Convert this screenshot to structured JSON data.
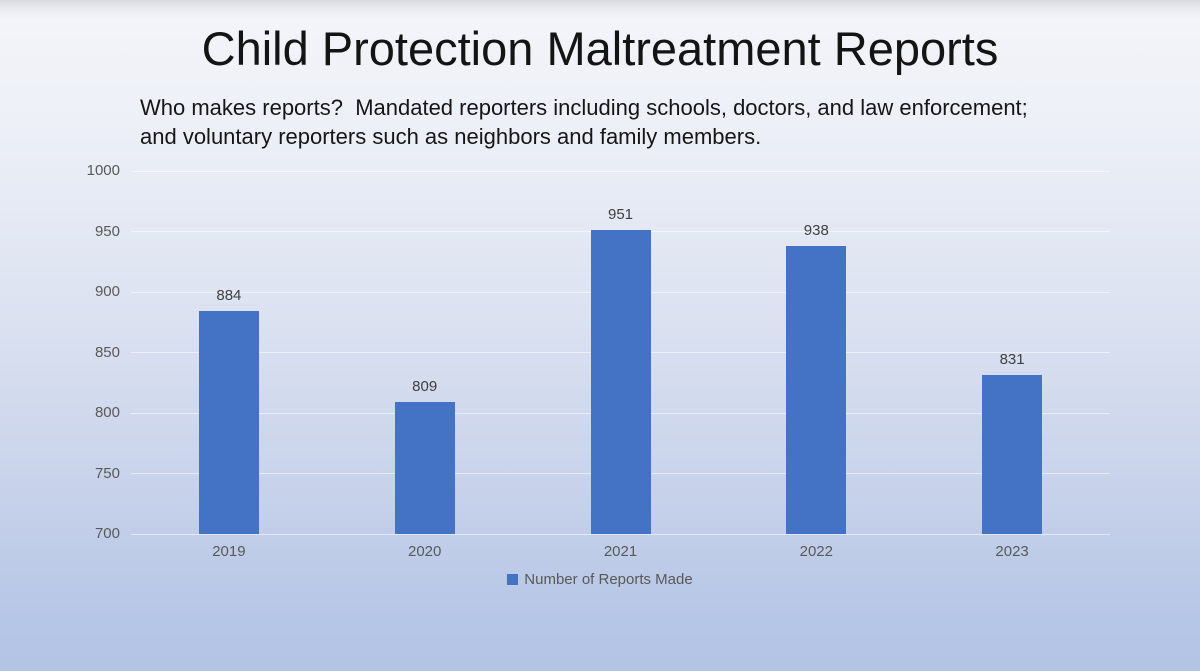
{
  "slide": {
    "title": "Child Protection Maltreatment Reports",
    "subtitle_lines": [
      "Who makes reports?  Mandated reporters including schools, doctors, and law enforcement;",
      "and voluntary reporters such as neighbors and family members."
    ]
  },
  "chart_data": {
    "type": "bar",
    "title": "",
    "xlabel": "",
    "ylabel": "",
    "categories": [
      "2019",
      "2020",
      "2021",
      "2022",
      "2023"
    ],
    "values": [
      884,
      809,
      951,
      938,
      831
    ],
    "series": [
      {
        "name": "Number of Reports Made",
        "values": [
          884,
          809,
          951,
          938,
          831
        ]
      }
    ],
    "legend_label": "Number of Reports Made",
    "legend_position": "bottom",
    "y_ticks": [
      "1000",
      "950",
      "900",
      "850",
      "800",
      "750",
      "700"
    ],
    "ylim": [
      700,
      1000
    ],
    "grid": true,
    "bar_color": "#4472c4",
    "tick_label_color": "#595959",
    "value_label_color": "#404040"
  }
}
